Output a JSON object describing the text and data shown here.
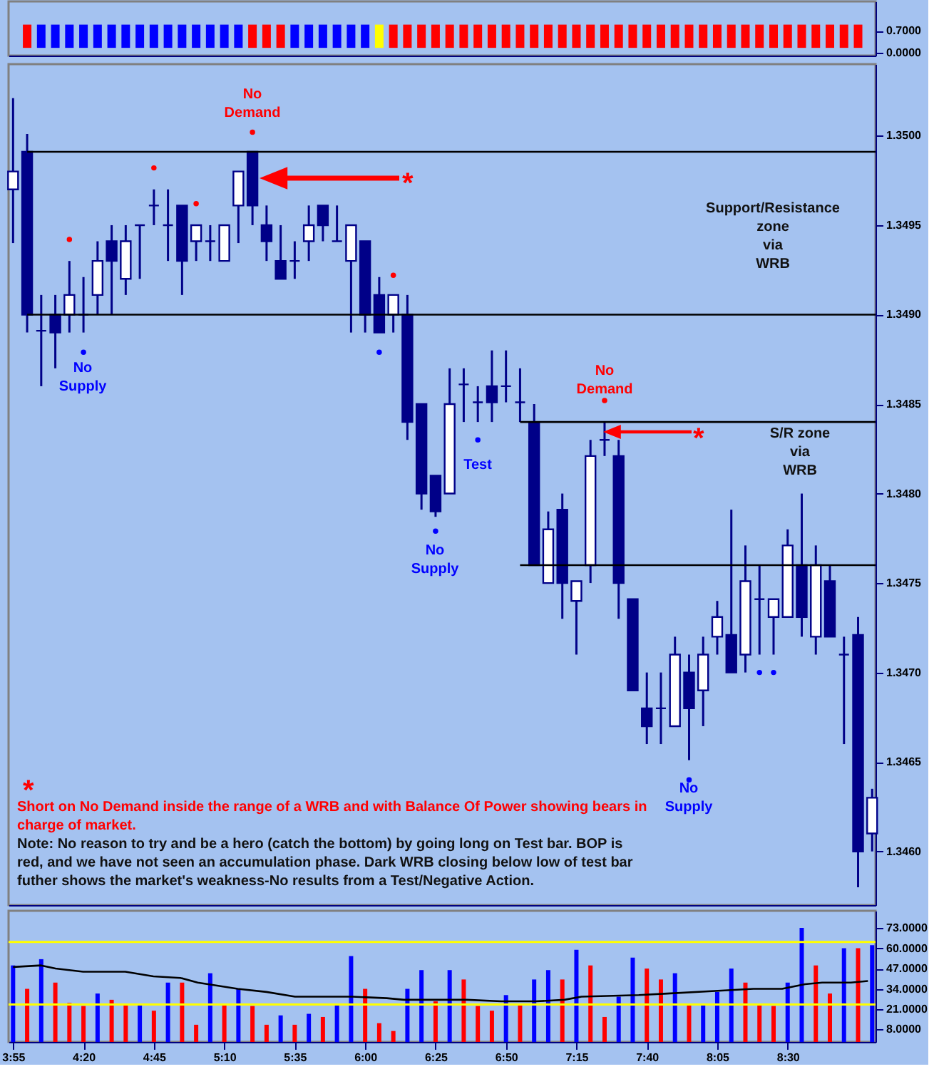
{
  "chart_data": [
    {
      "type": "bar",
      "tick_labels": "y",
      "grid": false,
      "x": [
        4.0,
        4.0833,
        4.1667,
        4.25,
        4.3333,
        4.4167,
        4.5,
        4.5833,
        4.6667,
        4.75,
        4.8333,
        4.9167,
        5.0,
        5.0833,
        5.1667,
        5.25,
        5.3333,
        5.4167,
        5.5,
        5.5833,
        5.6667,
        5.75,
        5.8333,
        5.9167,
        6.0,
        6.0833,
        6.1667,
        6.25,
        6.3333,
        6.4167,
        6.5,
        6.5833,
        6.6667,
        6.75,
        6.8333,
        6.9167,
        7.0,
        7.0833,
        7.1667,
        7.25,
        7.3333,
        7.4167,
        7.5,
        7.5833,
        7.6667,
        7.75,
        7.8333,
        7.9167,
        8.0,
        8.0833,
        8.1667,
        8.25,
        8.3333,
        8.4167,
        8.5,
        8.5833,
        8.6667,
        8.75,
        8.8333,
        8.9167
      ],
      "base": [
        0.15,
        0.15,
        0.15,
        0.15,
        0.15,
        0.15,
        0.15,
        0.15,
        0.15,
        0.15,
        0.15,
        0.15,
        0.15,
        0.15,
        0.15,
        0.15,
        0.15,
        0.15,
        0.15,
        0.15,
        0.15,
        0.15,
        0.15,
        0.15,
        0.15,
        0.15,
        0.15,
        0.15,
        0.15,
        0.15,
        0.15,
        0.15,
        0.15,
        0.15,
        0.15,
        0.15,
        0.15,
        0.15,
        0.15,
        0.15,
        0.15,
        0.15,
        0.15,
        0.15,
        0.15,
        0.15,
        0.15,
        0.15,
        0.15,
        0.15,
        0.15,
        0.15,
        0.15,
        0.15,
        0.15,
        0.15,
        0.15,
        0.15,
        0.15,
        0.15
      ],
      "values": [
        0.75,
        0.75,
        0.75,
        0.75,
        0.75,
        0.75,
        0.75,
        0.75,
        0.75,
        0.75,
        0.75,
        0.75,
        0.75,
        0.75,
        0.75,
        0.75,
        0.75,
        0.75,
        0.75,
        0.75,
        0.75,
        0.75,
        0.75,
        0.75,
        0.75,
        0.75,
        0.75,
        0.75,
        0.75,
        0.75,
        0.75,
        0.75,
        0.75,
        0.75,
        0.75,
        0.75,
        0.75,
        0.75,
        0.75,
        0.75,
        0.75,
        0.75,
        0.75,
        0.75,
        0.75,
        0.75,
        0.75,
        0.75,
        0.75,
        0.75,
        0.75,
        0.75,
        0.75,
        0.75,
        0.75,
        0.75,
        0.75,
        0.75,
        0.75,
        0.75
      ],
      "colors": [
        "#ff0000",
        "#0000ff",
        "#0000ff",
        "#0000ff",
        "#0000ff",
        "#0000ff",
        "#0000ff",
        "#0000ff",
        "#0000ff",
        "#0000ff",
        "#0000ff",
        "#0000ff",
        "#0000ff",
        "#0000ff",
        "#0000ff",
        "#0000ff",
        "#ff0000",
        "#ff0000",
        "#ff0000",
        "#0000ff",
        "#0000ff",
        "#0000ff",
        "#0000ff",
        "#0000ff",
        "#0000ff",
        "#ffff00",
        "#ff0000",
        "#ff0000",
        "#ff0000",
        "#ff0000",
        "#ff0000",
        "#ff0000",
        "#ff0000",
        "#ff0000",
        "#ff0000",
        "#ff0000",
        "#ff0000",
        "#ff0000",
        "#ff0000",
        "#ff0000",
        "#ff0000",
        "#ff0000",
        "#ff0000",
        "#ff0000",
        "#ff0000",
        "#ff0000",
        "#ff0000",
        "#ff0000",
        "#ff0000",
        "#ff0000",
        "#ff0000",
        "#ff0000",
        "#ff0000",
        "#ff0000",
        "#ff0000",
        "#ff0000",
        "#ff0000",
        "#ff0000",
        "#ff0000",
        "#ff0000"
      ],
      "xlim": [
        3.89,
        9.02
      ],
      "ylim": [
        -0.1,
        1.65
      ],
      "yticks": [
        {
          "value": 0.7,
          "label": "0.7000"
        },
        {
          "value": 0,
          "label": "0.0000"
        }
      ]
    },
    {
      "type": "candlestick",
      "tick_labels": "y",
      "grid": false,
      "color": "#000088",
      "x": [
        3.9167,
        4.0,
        4.0833,
        4.1667,
        4.25,
        4.3333,
        4.4167,
        4.5,
        4.5833,
        4.6667,
        4.75,
        4.8333,
        4.9167,
        5.0,
        5.0833,
        5.1667,
        5.25,
        5.3333,
        5.4167,
        5.5,
        5.5833,
        5.6667,
        5.75,
        5.8333,
        5.9167,
        6.0,
        6.0833,
        6.1667,
        6.25,
        6.3333,
        6.4167,
        6.5,
        6.5833,
        6.6667,
        6.75,
        6.8333,
        6.9167,
        7.0,
        7.0833,
        7.1667,
        7.25,
        7.3333,
        7.4167,
        7.5,
        7.5833,
        7.6667,
        7.75,
        7.8333,
        7.9167,
        8.0,
        8.0833,
        8.1667,
        8.25,
        8.3333,
        8.4167,
        8.5,
        8.5833,
        8.6667,
        8.75,
        8.8333,
        8.9167,
        9.0
      ],
      "ohlc": [
        [
          1.3497,
          1.35021,
          1.3494,
          1.3498
        ],
        [
          1.34991,
          1.35001,
          1.3489,
          1.349
        ],
        [
          1.34891,
          1.34911,
          1.3486,
          1.34891
        ],
        [
          1.349,
          1.34911,
          1.3487,
          1.3489
        ],
        [
          1.349,
          1.3493,
          1.3489,
          1.34911
        ],
        [
          1.349,
          1.34921,
          1.3489,
          1.349
        ],
        [
          1.34911,
          1.34941,
          1.349,
          1.3493
        ],
        [
          1.34941,
          1.3495,
          1.349,
          1.3493
        ],
        [
          1.3492,
          1.3495,
          1.34911,
          1.34941
        ],
        [
          1.3495,
          1.3495,
          1.3492,
          1.3495
        ],
        [
          1.34961,
          1.3497,
          1.3495,
          1.34961
        ],
        [
          1.3495,
          1.3497,
          1.3493,
          1.3495
        ],
        [
          1.34961,
          1.34961,
          1.34911,
          1.3493
        ],
        [
          1.34941,
          1.3495,
          1.3493,
          1.3495
        ],
        [
          1.34941,
          1.3495,
          1.3493,
          1.34941
        ],
        [
          1.3493,
          1.3495,
          1.3493,
          1.3495
        ],
        [
          1.34961,
          1.3498,
          1.3494,
          1.3498
        ],
        [
          1.34991,
          1.34991,
          1.3495,
          1.34961
        ],
        [
          1.3495,
          1.34961,
          1.3493,
          1.34941
        ],
        [
          1.3493,
          1.3495,
          1.3492,
          1.3492
        ],
        [
          1.3493,
          1.34941,
          1.3492,
          1.3493
        ],
        [
          1.34941,
          1.34961,
          1.3493,
          1.3495
        ],
        [
          1.34961,
          1.34961,
          1.34941,
          1.3495
        ],
        [
          1.34941,
          1.34961,
          1.34941,
          1.34941
        ],
        [
          1.3493,
          1.3495,
          1.3489,
          1.3495
        ],
        [
          1.34941,
          1.34941,
          1.3489,
          1.349
        ],
        [
          1.34911,
          1.34921,
          1.3489,
          1.3489
        ],
        [
          1.349,
          1.34911,
          1.3489,
          1.34911
        ],
        [
          1.349,
          1.34911,
          1.3483,
          1.3484
        ],
        [
          1.3485,
          1.3485,
          1.34791,
          1.348
        ],
        [
          1.3481,
          1.3481,
          1.34787,
          1.3479
        ],
        [
          1.348,
          1.3487,
          1.348,
          1.3485
        ],
        [
          1.34861,
          1.3487,
          1.3484,
          1.34861
        ],
        [
          1.34851,
          1.3486,
          1.3484,
          1.34851
        ],
        [
          1.3486,
          1.3488,
          1.3484,
          1.34851
        ],
        [
          1.3486,
          1.3488,
          1.34851,
          1.3486
        ],
        [
          1.34851,
          1.3487,
          1.3484,
          1.34851
        ],
        [
          1.3484,
          1.3485,
          1.3476,
          1.3476
        ],
        [
          1.3475,
          1.3479,
          1.3475,
          1.3478
        ],
        [
          1.34791,
          1.348,
          1.3473,
          1.3475
        ],
        [
          1.3474,
          1.34751,
          1.3471,
          1.34751
        ],
        [
          1.3476,
          1.3483,
          1.3475,
          1.34821
        ],
        [
          1.3483,
          1.3484,
          1.34821,
          1.3483
        ],
        [
          1.34821,
          1.3483,
          1.3473,
          1.3475
        ],
        [
          1.34741,
          1.34741,
          1.3469,
          1.3469
        ],
        [
          1.3468,
          1.347,
          1.3466,
          1.3467
        ],
        [
          1.3468,
          1.347,
          1.3466,
          1.3468
        ],
        [
          1.3467,
          1.3472,
          1.3467,
          1.3471
        ],
        [
          1.347,
          1.3471,
          1.34651,
          1.3468
        ],
        [
          1.3469,
          1.3472,
          1.3467,
          1.3471
        ],
        [
          1.3472,
          1.3474,
          1.3471,
          1.34731
        ],
        [
          1.34721,
          1.34791,
          1.347,
          1.347
        ],
        [
          1.3471,
          1.34771,
          1.347,
          1.34751
        ],
        [
          1.34741,
          1.3476,
          1.3471,
          1.34741
        ],
        [
          1.34731,
          1.34741,
          1.3471,
          1.34741
        ],
        [
          1.34731,
          1.3478,
          1.34731,
          1.34771
        ],
        [
          1.3476,
          1.348,
          1.3472,
          1.34731
        ],
        [
          1.3472,
          1.34771,
          1.3471,
          1.3476
        ],
        [
          1.34751,
          1.3476,
          1.3472,
          1.3472
        ],
        [
          1.3471,
          1.3472,
          1.3466,
          1.3471
        ],
        [
          1.34721,
          1.34731,
          1.3458,
          1.346
        ],
        [
          1.3461,
          1.34635,
          1.346,
          1.3463
        ]
      ],
      "series": [
        {
          "type": "scatter",
          "color": "#ff0000",
          "x": [
            4.25,
            4.75,
            5.0,
            5.3333,
            6.1667,
            7.4167
          ],
          "values": [
            1.34942,
            1.34982,
            1.34962,
            1.35002,
            1.34922,
            1.34852
          ]
        },
        {
          "type": "scatter",
          "color": "#0000ff",
          "x": [
            4.3333,
            6.0833,
            6.4167,
            6.6667,
            7.9167,
            8.3333,
            8.4167
          ],
          "values": [
            1.34879,
            1.34879,
            1.34779,
            1.3483,
            1.3464,
            1.347,
            1.347
          ]
        },
        {
          "type": "line",
          "color": "#000000",
          "x": [
            4.0,
            9.02
          ],
          "values": [
            1.34991,
            1.34991
          ]
        },
        {
          "type": "line",
          "color": "#000000",
          "x": [
            4.0,
            9.02
          ],
          "values": [
            1.349,
            1.349
          ]
        },
        {
          "type": "line",
          "color": "#000000",
          "x": [
            6.9167,
            9.02
          ],
          "values": [
            1.3484,
            1.3484
          ]
        },
        {
          "type": "line",
          "color": "#000000",
          "x": [
            6.9167,
            9.02
          ],
          "values": [
            1.3476,
            1.3476
          ]
        }
      ],
      "annotations": [
        "No\nDemand",
        "No\nSupply",
        "No\nSupply",
        "Test",
        "No\nDemand",
        "No\nSupply",
        "Support/Resistance\nzone\nvia\nWRB",
        "S/R zone\nvia\nWRB",
        "*",
        "*",
        "*",
        "Short on No Demand inside the range of a WRB and with Balance Of Power showing bears in charge of market.",
        "Note: No reason to try and be a hero (catch the bottom) by going long on Test bar. BOP is red, and we have not seen an accumulation phase. Dark WRB closing below low of test bar futher shows the market's weakness-No results from a Test/Negative Action."
      ],
      "xlim": [
        3.89,
        9.02
      ],
      "ylim": [
        1.3457,
        1.3504
      ],
      "yticks": [
        {
          "value": 1.346,
          "label": "1.3460"
        },
        {
          "value": 1.3465,
          "label": "1.3465"
        },
        {
          "value": 1.347,
          "label": "1.3470"
        },
        {
          "value": 1.3475,
          "label": "1.3475"
        },
        {
          "value": 1.348,
          "label": "1.3480"
        },
        {
          "value": 1.3485,
          "label": "1.3485"
        },
        {
          "value": 1.349,
          "label": "1.3490"
        },
        {
          "value": 1.3495,
          "label": "1.3495"
        },
        {
          "value": 1.35,
          "label": "1.3500"
        }
      ]
    },
    {
      "type": "bar",
      "grid": false,
      "x": [
        3.9167,
        4.0,
        4.0833,
        4.1667,
        4.25,
        4.3333,
        4.4167,
        4.5,
        4.5833,
        4.6667,
        4.75,
        4.8333,
        4.9167,
        5.0,
        5.0833,
        5.1667,
        5.25,
        5.3333,
        5.4167,
        5.5,
        5.5833,
        5.6667,
        5.75,
        5.8333,
        5.9167,
        6.0,
        6.0833,
        6.1667,
        6.25,
        6.3333,
        6.4167,
        6.5,
        6.5833,
        6.6667,
        6.75,
        6.8333,
        6.9167,
        7.0,
        7.0833,
        7.1667,
        7.25,
        7.3333,
        7.4167,
        7.5,
        7.5833,
        7.6667,
        7.75,
        7.8333,
        7.9167,
        8.0,
        8.0833,
        8.1667,
        8.25,
        8.3333,
        8.4167,
        8.5,
        8.5833,
        8.6667,
        8.75,
        8.8333,
        8.9167,
        9.0
      ],
      "values": [
        49,
        34,
        53,
        38,
        25,
        23,
        31,
        27,
        24,
        24,
        20,
        38,
        38,
        11,
        44,
        24,
        34,
        23,
        11,
        17,
        11,
        18,
        16,
        24,
        55,
        34,
        12,
        7,
        34,
        46,
        26,
        46,
        40,
        23,
        20,
        30,
        24,
        40,
        46,
        40,
        59,
        49,
        16,
        29,
        54,
        47,
        40,
        44,
        24,
        24,
        32,
        47,
        38,
        24,
        23,
        38,
        73,
        49,
        31,
        60,
        60,
        62
      ],
      "colors": [
        "#0000ff",
        "#ff0000",
        "#0000ff",
        "#ff0000",
        "#ff0000",
        "#ff0000",
        "#0000ff",
        "#ff0000",
        "#ff0000",
        "#0000ff",
        "#ff0000",
        "#0000ff",
        "#ff0000",
        "#ff0000",
        "#0000ff",
        "#ff0000",
        "#0000ff",
        "#ff0000",
        "#ff0000",
        "#0000ff",
        "#ff0000",
        "#0000ff",
        "#ff0000",
        "#0000ff",
        "#0000ff",
        "#ff0000",
        "#ff0000",
        "#ff0000",
        "#0000ff",
        "#0000ff",
        "#ff0000",
        "#0000ff",
        "#ff0000",
        "#ff0000",
        "#ff0000",
        "#0000ff",
        "#ff0000",
        "#0000ff",
        "#0000ff",
        "#ff0000",
        "#0000ff",
        "#ff0000",
        "#ff0000",
        "#0000ff",
        "#0000ff",
        "#ff0000",
        "#ff0000",
        "#0000ff",
        "#ff0000",
        "#0000ff",
        "#0000ff",
        "#0000ff",
        "#ff0000",
        "#ff0000",
        "#ff0000",
        "#0000ff",
        "#0000ff",
        "#ff0000",
        "#ff0000",
        "#0000ff",
        "#ff0000",
        "#0000ff"
      ],
      "series": [
        {
          "type": "line",
          "color": "#000000",
          "x": [
            3.9167,
            4.083,
            4.168,
            4.331,
            4.581,
            4.747,
            4.907,
            5.009,
            5.246,
            5.416,
            5.585,
            5.924,
            6.128,
            6.229,
            6.602,
            6.805,
            7.009,
            7.179,
            7.28,
            7.619,
            7.789,
            8.127,
            8.297,
            8.467,
            8.603,
            8.704,
            8.874,
            8.975
          ],
          "values": [
            48,
            49,
            47,
            45,
            45,
            42,
            41,
            38,
            34,
            32,
            29,
            29,
            28,
            27,
            27,
            26,
            26,
            27,
            29,
            30,
            31,
            33,
            34,
            34,
            37,
            38,
            38,
            39
          ]
        }
      ],
      "ref_lines": [
        {
          "axis": "y",
          "value": 64,
          "color": "#ffff00"
        },
        {
          "axis": "y",
          "value": 24,
          "color": "#ffff00"
        }
      ],
      "xlim": [
        3.89,
        9.02
      ],
      "ylim": [
        0,
        84
      ],
      "xticks": [
        {
          "value": 3.9167,
          "label": "3:55"
        },
        {
          "value": 4.3333,
          "label": "4:20"
        },
        {
          "value": 4.75,
          "label": "4:45"
        },
        {
          "value": 5.1667,
          "label": "5:10"
        },
        {
          "value": 5.5833,
          "label": "5:35"
        },
        {
          "value": 6.0,
          "label": "6:00"
        },
        {
          "value": 6.4167,
          "label": "6:25"
        },
        {
          "value": 6.8333,
          "label": "6:50"
        },
        {
          "value": 7.25,
          "label": "7:15"
        },
        {
          "value": 7.6667,
          "label": "7:40"
        },
        {
          "value": 8.0833,
          "label": "8:05"
        },
        {
          "value": 8.5,
          "label": "8:30"
        }
      ],
      "yticks": [
        {
          "value": 8,
          "label": "8.0000"
        },
        {
          "value": 21,
          "label": "21.0000"
        },
        {
          "value": 34,
          "label": "34.0000"
        },
        {
          "value": 47,
          "label": "47.0000"
        },
        {
          "value": 60,
          "label": "60.0000"
        },
        {
          "value": 73,
          "label": "73.0000"
        }
      ]
    }
  ]
}
